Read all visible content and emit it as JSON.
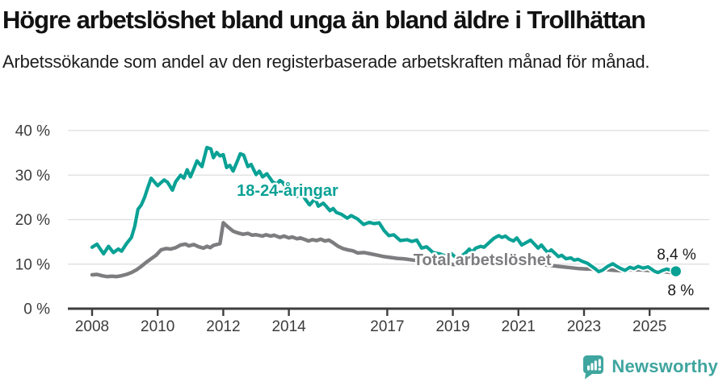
{
  "header": {
    "title": "Högre arbetslöshet bland unga än bland äldre i Trollhättan",
    "subtitle": "Arbetssökande som andel av den registerbaserade arbetskraften månad för månad."
  },
  "footer": {
    "brand": "Newsworthy"
  },
  "colors": {
    "youth": "#0aa195",
    "total": "#7d7d80",
    "logo": "#3fa59f",
    "axis": "#3d3d3d",
    "grid": "#dddddd",
    "tick_label": "#3c3c3c",
    "value_label": "#1a1a1a",
    "background": "#ffffff"
  },
  "chart_data": {
    "type": "line",
    "x_unit": "year",
    "y_unit": "percent",
    "xlim": [
      2007.6,
      2026.3
    ],
    "ylim": [
      0,
      40
    ],
    "grid": "horizontal",
    "legend": "labels-on-chart",
    "yticks": [
      {
        "value": 0,
        "label": "0 %"
      },
      {
        "value": 10,
        "label": "10 %"
      },
      {
        "value": 20,
        "label": "20 %"
      },
      {
        "value": 30,
        "label": "30 %"
      },
      {
        "value": 40,
        "label": "40 %"
      }
    ],
    "xticks": [
      {
        "value": 2008,
        "label": "2008"
      },
      {
        "value": 2010,
        "label": "2010"
      },
      {
        "value": 2012,
        "label": "2012"
      },
      {
        "value": 2014,
        "label": "2014"
      },
      {
        "value": 2017,
        "label": "2017"
      },
      {
        "value": 2019,
        "label": "2019"
      },
      {
        "value": 2021,
        "label": "2021"
      },
      {
        "value": 2023,
        "label": "2023"
      },
      {
        "value": 2025,
        "label": "2025"
      }
    ],
    "series": [
      {
        "id": "youth",
        "name": "18-24-åringar",
        "color": "#0aa195",
        "end_value_label": "8,4 %",
        "end_dot": true,
        "points": [
          [
            2008.0,
            13.8
          ],
          [
            2008.15,
            14.5
          ],
          [
            2008.35,
            12.3
          ],
          [
            2008.5,
            14.0
          ],
          [
            2008.65,
            12.6
          ],
          [
            2008.8,
            13.4
          ],
          [
            2008.9,
            12.9
          ],
          [
            2009.05,
            14.6
          ],
          [
            2009.2,
            16.0
          ],
          [
            2009.3,
            18.5
          ],
          [
            2009.4,
            22.3
          ],
          [
            2009.5,
            23.3
          ],
          [
            2009.6,
            25.0
          ],
          [
            2009.7,
            27.2
          ],
          [
            2009.8,
            29.3
          ],
          [
            2010.0,
            27.6
          ],
          [
            2010.1,
            28.3
          ],
          [
            2010.2,
            28.9
          ],
          [
            2010.3,
            28.4
          ],
          [
            2010.45,
            26.6
          ],
          [
            2010.55,
            28.5
          ],
          [
            2010.7,
            30.0
          ],
          [
            2010.8,
            29.3
          ],
          [
            2010.9,
            31.2
          ],
          [
            2011.0,
            29.6
          ],
          [
            2011.1,
            31.4
          ],
          [
            2011.2,
            33.2
          ],
          [
            2011.35,
            31.9
          ],
          [
            2011.5,
            36.2
          ],
          [
            2011.62,
            35.9
          ],
          [
            2011.7,
            33.9
          ],
          [
            2011.8,
            35.1
          ],
          [
            2011.9,
            34.3
          ],
          [
            2012.0,
            34.6
          ],
          [
            2012.1,
            31.7
          ],
          [
            2012.2,
            32.2
          ],
          [
            2012.3,
            30.9
          ],
          [
            2012.42,
            33.0
          ],
          [
            2012.52,
            34.8
          ],
          [
            2012.62,
            34.5
          ],
          [
            2012.75,
            31.9
          ],
          [
            2012.85,
            32.4
          ],
          [
            2013.0,
            30.1
          ],
          [
            2013.1,
            30.9
          ],
          [
            2013.2,
            29.6
          ],
          [
            2013.33,
            30.3
          ],
          [
            2013.5,
            28.5
          ],
          [
            2013.63,
            28.0
          ],
          [
            2013.73,
            28.8
          ],
          [
            2013.82,
            28.3
          ],
          [
            2013.93,
            27.1
          ],
          [
            2014.0,
            27.7
          ],
          [
            2014.25,
            25.2
          ],
          [
            2014.38,
            26.0
          ],
          [
            2014.5,
            24.6
          ],
          [
            2014.63,
            23.3
          ],
          [
            2014.8,
            24.7
          ],
          [
            2014.9,
            23.0
          ],
          [
            2015.05,
            23.7
          ],
          [
            2015.15,
            22.9
          ],
          [
            2015.25,
            22.0
          ],
          [
            2015.35,
            22.5
          ],
          [
            2015.45,
            21.6
          ],
          [
            2015.6,
            21.2
          ],
          [
            2015.78,
            20.3
          ],
          [
            2015.9,
            20.9
          ],
          [
            2016.1,
            20.1
          ],
          [
            2016.28,
            18.9
          ],
          [
            2016.45,
            19.4
          ],
          [
            2016.6,
            19.1
          ],
          [
            2016.75,
            19.3
          ],
          [
            2016.9,
            17.6
          ],
          [
            2017.05,
            16.4
          ],
          [
            2017.2,
            16.6
          ],
          [
            2017.4,
            15.3
          ],
          [
            2017.6,
            15.5
          ],
          [
            2017.75,
            15.1
          ],
          [
            2017.9,
            15.4
          ],
          [
            2018.05,
            13.6
          ],
          [
            2018.2,
            13.9
          ],
          [
            2018.4,
            12.6
          ],
          [
            2018.6,
            12.3
          ],
          [
            2018.75,
            11.9
          ],
          [
            2018.95,
            12.4
          ],
          [
            2019.1,
            11.4
          ],
          [
            2019.25,
            11.7
          ],
          [
            2019.4,
            12.6
          ],
          [
            2019.5,
            13.4
          ],
          [
            2019.58,
            12.7
          ],
          [
            2019.7,
            13.6
          ],
          [
            2019.85,
            14.0
          ],
          [
            2019.95,
            13.8
          ],
          [
            2020.1,
            14.8
          ],
          [
            2020.25,
            15.8
          ],
          [
            2020.4,
            16.4
          ],
          [
            2020.5,
            16.0
          ],
          [
            2020.6,
            16.3
          ],
          [
            2020.72,
            15.6
          ],
          [
            2020.85,
            15.2
          ],
          [
            2020.95,
            15.9
          ],
          [
            2021.1,
            14.3
          ],
          [
            2021.25,
            14.9
          ],
          [
            2021.37,
            15.4
          ],
          [
            2021.5,
            14.4
          ],
          [
            2021.6,
            13.6
          ],
          [
            2021.7,
            14.3
          ],
          [
            2021.82,
            13.2
          ],
          [
            2021.9,
            12.6
          ],
          [
            2022.0,
            13.2
          ],
          [
            2022.12,
            12.4
          ],
          [
            2022.22,
            11.7
          ],
          [
            2022.32,
            12.0
          ],
          [
            2022.45,
            11.2
          ],
          [
            2022.6,
            11.4
          ],
          [
            2022.7,
            10.9
          ],
          [
            2022.82,
            11.1
          ],
          [
            2022.95,
            10.6
          ],
          [
            2023.1,
            10.2
          ],
          [
            2023.22,
            9.6
          ],
          [
            2023.35,
            8.9
          ],
          [
            2023.45,
            8.3
          ],
          [
            2023.58,
            8.7
          ],
          [
            2023.72,
            9.5
          ],
          [
            2023.88,
            10.1
          ],
          [
            2024.0,
            9.5
          ],
          [
            2024.15,
            8.9
          ],
          [
            2024.25,
            8.6
          ],
          [
            2024.4,
            9.3
          ],
          [
            2024.52,
            9.0
          ],
          [
            2024.65,
            9.5
          ],
          [
            2024.8,
            9.1
          ],
          [
            2024.95,
            9.4
          ],
          [
            2025.05,
            8.9
          ],
          [
            2025.15,
            8.4
          ],
          [
            2025.25,
            8.1
          ],
          [
            2025.4,
            8.6
          ],
          [
            2025.52,
            8.9
          ],
          [
            2025.65,
            8.6
          ],
          [
            2025.8,
            8.4
          ]
        ]
      },
      {
        "id": "total",
        "name": "Total arbetslöshet",
        "color": "#7d7d80",
        "end_value_label": "8 %",
        "end_dot": false,
        "points": [
          [
            2008.0,
            7.6
          ],
          [
            2008.15,
            7.7
          ],
          [
            2008.3,
            7.4
          ],
          [
            2008.45,
            7.2
          ],
          [
            2008.6,
            7.3
          ],
          [
            2008.75,
            7.2
          ],
          [
            2008.9,
            7.4
          ],
          [
            2009.05,
            7.7
          ],
          [
            2009.2,
            8.1
          ],
          [
            2009.35,
            8.7
          ],
          [
            2009.5,
            9.5
          ],
          [
            2009.65,
            10.4
          ],
          [
            2009.8,
            11.2
          ],
          [
            2009.95,
            12.0
          ],
          [
            2010.1,
            13.2
          ],
          [
            2010.25,
            13.5
          ],
          [
            2010.4,
            13.4
          ],
          [
            2010.55,
            13.7
          ],
          [
            2010.7,
            14.3
          ],
          [
            2010.85,
            14.5
          ],
          [
            2010.95,
            14.1
          ],
          [
            2011.1,
            14.4
          ],
          [
            2011.25,
            13.9
          ],
          [
            2011.4,
            13.6
          ],
          [
            2011.5,
            14.0
          ],
          [
            2011.6,
            13.7
          ],
          [
            2011.7,
            14.2
          ],
          [
            2011.8,
            14.4
          ],
          [
            2011.9,
            14.6
          ],
          [
            2012.0,
            19.3
          ],
          [
            2012.15,
            18.3
          ],
          [
            2012.3,
            17.4
          ],
          [
            2012.45,
            17.0
          ],
          [
            2012.6,
            16.7
          ],
          [
            2012.75,
            16.9
          ],
          [
            2012.88,
            16.5
          ],
          [
            2013.0,
            16.6
          ],
          [
            2013.2,
            16.3
          ],
          [
            2013.3,
            16.6
          ],
          [
            2013.45,
            16.3
          ],
          [
            2013.55,
            16.5
          ],
          [
            2013.73,
            16.0
          ],
          [
            2013.85,
            16.3
          ],
          [
            2014.0,
            15.9
          ],
          [
            2014.1,
            16.1
          ],
          [
            2014.25,
            15.7
          ],
          [
            2014.35,
            15.9
          ],
          [
            2014.5,
            15.5
          ],
          [
            2014.6,
            15.2
          ],
          [
            2014.72,
            15.5
          ],
          [
            2014.85,
            15.3
          ],
          [
            2014.97,
            15.6
          ],
          [
            2015.1,
            15.2
          ],
          [
            2015.22,
            15.4
          ],
          [
            2015.35,
            14.8
          ],
          [
            2015.5,
            14.0
          ],
          [
            2015.65,
            13.5
          ],
          [
            2015.8,
            13.2
          ],
          [
            2015.95,
            13.0
          ],
          [
            2016.1,
            12.5
          ],
          [
            2016.3,
            12.6
          ],
          [
            2016.5,
            12.3
          ],
          [
            2016.7,
            12.0
          ],
          [
            2016.9,
            11.7
          ],
          [
            2017.1,
            11.5
          ],
          [
            2017.3,
            11.3
          ],
          [
            2017.5,
            11.2
          ],
          [
            2017.7,
            11.0
          ],
          [
            2017.9,
            10.8
          ],
          [
            2018.1,
            10.6
          ],
          [
            2018.35,
            10.4
          ],
          [
            2018.6,
            10.2
          ],
          [
            2018.85,
            10.0
          ],
          [
            2019.1,
            9.9
          ],
          [
            2019.35,
            9.9
          ],
          [
            2019.6,
            10.0
          ],
          [
            2019.85,
            10.3
          ],
          [
            2020.1,
            11.0
          ],
          [
            2020.35,
            11.6
          ],
          [
            2020.6,
            11.4
          ],
          [
            2020.85,
            11.2
          ],
          [
            2021.1,
            10.8
          ],
          [
            2021.35,
            10.4
          ],
          [
            2021.6,
            10.1
          ],
          [
            2021.85,
            9.8
          ],
          [
            2022.1,
            9.6
          ],
          [
            2022.35,
            9.4
          ],
          [
            2022.6,
            9.2
          ],
          [
            2022.85,
            9.0
          ],
          [
            2023.05,
            8.9
          ],
          [
            2023.2,
            8.9
          ],
          [
            2023.35,
            8.8
          ],
          [
            2023.55,
            8.9
          ],
          [
            2023.75,
            8.7
          ],
          [
            2023.95,
            8.6
          ],
          [
            2024.15,
            8.5
          ],
          [
            2024.35,
            8.7
          ],
          [
            2024.55,
            8.7
          ],
          [
            2024.75,
            8.7
          ],
          [
            2024.95,
            8.6
          ],
          [
            2025.1,
            8.5
          ],
          [
            2025.25,
            8.4
          ],
          [
            2025.45,
            8.3
          ],
          [
            2025.65,
            8.1
          ],
          [
            2025.9,
            8.0
          ]
        ]
      }
    ],
    "annotations": {
      "series_labels": [
        {
          "series": "youth",
          "text": "18-24-åringar",
          "x": 2013.96,
          "y": 26.6
        },
        {
          "series": "total",
          "text": "Total arbetslöshet",
          "x": 2019.9,
          "y": 11.05
        }
      ],
      "value_labels": [
        {
          "series": "youth",
          "text": "8,4 %",
          "x": 2025.82,
          "y": 12.2
        },
        {
          "series": "total",
          "text": "8 %",
          "x": 2025.95,
          "y": 4.2
        }
      ]
    }
  }
}
